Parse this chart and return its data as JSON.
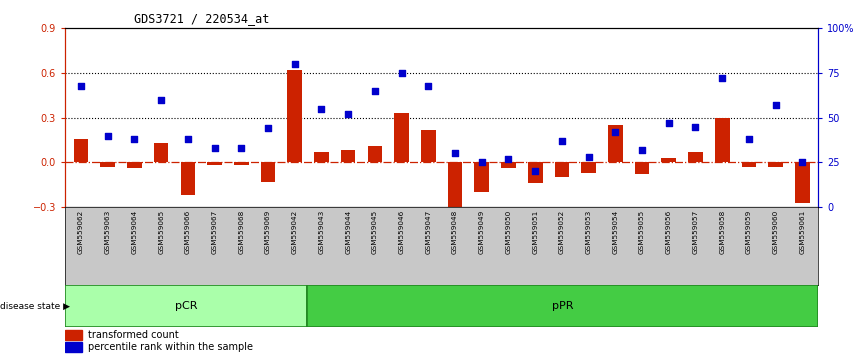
{
  "title": "GDS3721 / 220534_at",
  "samples": [
    "GSM559062",
    "GSM559063",
    "GSM559064",
    "GSM559065",
    "GSM559066",
    "GSM559067",
    "GSM559068",
    "GSM559069",
    "GSM559042",
    "GSM559043",
    "GSM559044",
    "GSM559045",
    "GSM559046",
    "GSM559047",
    "GSM559048",
    "GSM559049",
    "GSM559050",
    "GSM559051",
    "GSM559052",
    "GSM559053",
    "GSM559054",
    "GSM559055",
    "GSM559056",
    "GSM559057",
    "GSM559058",
    "GSM559059",
    "GSM559060",
    "GSM559061"
  ],
  "bar_values": [
    0.16,
    -0.03,
    -0.04,
    0.13,
    -0.22,
    -0.02,
    -0.02,
    -0.13,
    0.62,
    0.07,
    0.08,
    0.11,
    0.33,
    0.22,
    -0.32,
    -0.2,
    -0.04,
    -0.14,
    -0.1,
    -0.07,
    0.25,
    -0.08,
    0.03,
    0.07,
    0.3,
    -0.03,
    -0.03,
    -0.27
  ],
  "dot_values": [
    68,
    40,
    38,
    60,
    38,
    33,
    33,
    44,
    80,
    55,
    52,
    65,
    75,
    68,
    30,
    25,
    27,
    20,
    37,
    28,
    42,
    32,
    47,
    45,
    72,
    38,
    57,
    25
  ],
  "pCR_count": 9,
  "pPR_count": 19,
  "ylim_left": [
    -0.3,
    0.9
  ],
  "ylim_right": [
    0,
    100
  ],
  "yticks_left": [
    -0.3,
    0.0,
    0.3,
    0.6,
    0.9
  ],
  "yticks_right": [
    0,
    25,
    50,
    75,
    100
  ],
  "ytick_labels_right": [
    "0",
    "25",
    "50",
    "75",
    "100%"
  ],
  "hlines": [
    0.3,
    0.6
  ],
  "bar_color": "#CC2200",
  "dot_color": "#0000CC",
  "pCR_color": "#AAFFAA",
  "pPR_color": "#44CC44",
  "group_border_color": "#228822",
  "zero_line_color": "#CC2200",
  "ticklabel_bg_color": "#C8C8C8",
  "plot_bg_color": "#FFFFFF"
}
